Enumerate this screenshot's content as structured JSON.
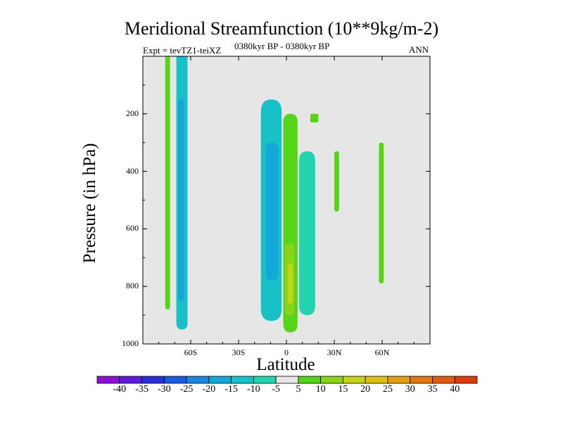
{
  "chart_data": {
    "type": "contour",
    "title": "Meridional Streamfunction (10**9kg/m-2)",
    "subtitle": "0380kyr BP - 0380kyr BP",
    "left_annotation": "Expt = tevTZ1-teiXZ",
    "right_annotation": "ANN",
    "xlabel": "Latitude",
    "ylabel": "Pressure (in hPa)",
    "xlim": [
      -90,
      90
    ],
    "ylim": [
      1000,
      0
    ],
    "x_ticks": [
      {
        "value": -60,
        "label": "60S"
      },
      {
        "value": -30,
        "label": "30S"
      },
      {
        "value": 0,
        "label": "0"
      },
      {
        "value": 30,
        "label": "30N"
      },
      {
        "value": 60,
        "label": "60N"
      }
    ],
    "y_ticks": [
      {
        "value": 200,
        "label": "200"
      },
      {
        "value": 400,
        "label": "400"
      },
      {
        "value": 600,
        "label": "600"
      },
      {
        "value": 800,
        "label": "800"
      },
      {
        "value": 1000,
        "label": "1000"
      }
    ],
    "colorbar": {
      "levels": [
        -40,
        -35,
        -30,
        -25,
        -20,
        -15,
        -10,
        -5,
        5,
        10,
        15,
        20,
        25,
        30,
        35,
        40
      ],
      "labels": [
        "-40",
        "-35",
        "-30",
        "-25",
        "-20",
        "-15",
        "-10",
        "-5",
        "5",
        "10",
        "15",
        "20",
        "25",
        "30",
        "35",
        "40"
      ],
      "colors": [
        "#8a12d8",
        "#5c1cd8",
        "#2a2ed8",
        "#1a5ae0",
        "#1a86e0",
        "#14a8d8",
        "#18c0c8",
        "#20d4b0",
        "#e6e6e6",
        "#55d418",
        "#88d418",
        "#c4d418",
        "#e0c010",
        "#e0a010",
        "#e07a10",
        "#e05a10",
        "#e03a10"
      ]
    },
    "regions": [
      {
        "name": "south-polar-positive-band",
        "level": 5,
        "lat_range": [
          -76,
          -73
        ],
        "p_range": [
          0,
          880
        ]
      },
      {
        "name": "south-polar-negative-band",
        "level": -10,
        "lat_range": [
          -69,
          -62
        ],
        "p_range": [
          0,
          950
        ]
      },
      {
        "name": "south-polar-negative-core",
        "level": -15,
        "lat_range": [
          -68,
          -64
        ],
        "p_range": [
          150,
          850
        ]
      },
      {
        "name": "southern-hadley-negative-cell",
        "level": -10,
        "lat_range": [
          -16,
          -3
        ],
        "p_range": [
          150,
          920
        ]
      },
      {
        "name": "southern-hadley-negative-core",
        "level": -15,
        "lat_range": [
          -13,
          -5
        ],
        "p_range": [
          300,
          780
        ]
      },
      {
        "name": "equatorial-positive-cell",
        "level": 5,
        "lat_range": [
          -2,
          7
        ],
        "p_range": [
          200,
          960
        ]
      },
      {
        "name": "equatorial-positive-core",
        "level": 10,
        "lat_range": [
          -1,
          5
        ],
        "p_range": [
          650,
          900
        ]
      },
      {
        "name": "equatorial-positive-max",
        "level": 15,
        "lat_range": [
          1,
          4
        ],
        "p_range": [
          720,
          860
        ]
      },
      {
        "name": "northern-tropical-negative-cell",
        "level": -5,
        "lat_range": [
          8,
          18
        ],
        "p_range": [
          330,
          900
        ]
      },
      {
        "name": "northern-upper-positive-blob",
        "level": 5,
        "lat_range": [
          15,
          20
        ],
        "p_range": [
          200,
          230
        ]
      },
      {
        "name": "northern-midlat-positive-band",
        "level": 5,
        "lat_range": [
          30,
          33
        ],
        "p_range": [
          330,
          540
        ]
      },
      {
        "name": "northern-subpolar-positive-band",
        "level": 5,
        "lat_range": [
          58,
          61
        ],
        "p_range": [
          300,
          790
        ]
      }
    ]
  }
}
